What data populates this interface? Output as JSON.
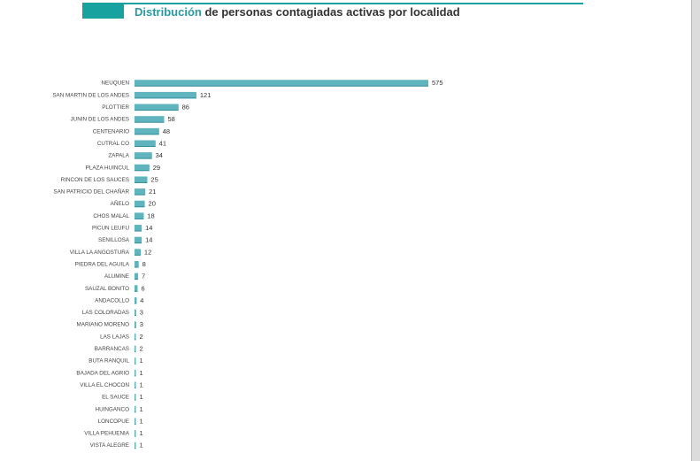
{
  "title": {
    "accent": "Distribución",
    "rest": " de personas contagiadas activas por localidad"
  },
  "colors": {
    "header_accent": "#17a2a0",
    "bar": "#5fb4be",
    "bar_shadow": "#2f8e99"
  },
  "chart_data": {
    "type": "bar",
    "orientation": "horizontal",
    "title": "Distribución de personas contagiadas activas por localidad",
    "categories": [
      "NEUQUEN",
      "SAN MARTIN DE LOS ANDES",
      "PLOTTIER",
      "JUNIN DE LOS ANDES",
      "CENTENARIO",
      "CUTRAL CO",
      "ZAPALA",
      "PLAZA HUINCUL",
      "RINCON DE LOS SAUCES",
      "SAN PATRICIO DEL CHAÑAR",
      "AÑELO",
      "CHOS MALAL",
      "PICUN LEUFU",
      "SENILLOSA",
      "VILLA LA ANGOSTURA",
      "PIEDRA DEL AGUILA",
      "ALUMINE",
      "SAUZAL BONITO",
      "ANDACOLLO",
      "LAS COLORADAS",
      "MARIANO MORENO",
      "LAS LAJAS",
      "BARRANCAS",
      "BUTA RANQUIL",
      "BAJADA DEL AGRIO",
      "VILLA EL CHOCON",
      "EL SAUCE",
      "HUINGANCO",
      "LONCOPUE",
      "VILLA PEHUENIA",
      "VISTA ALEGRE"
    ],
    "values": [
      575,
      121,
      86,
      58,
      48,
      41,
      34,
      29,
      25,
      21,
      20,
      18,
      14,
      14,
      12,
      8,
      7,
      6,
      4,
      3,
      3,
      2,
      2,
      1,
      1,
      1,
      1,
      1,
      1,
      1,
      1
    ],
    "xlim": [
      0,
      575
    ],
    "grid": false,
    "legend": "none"
  }
}
